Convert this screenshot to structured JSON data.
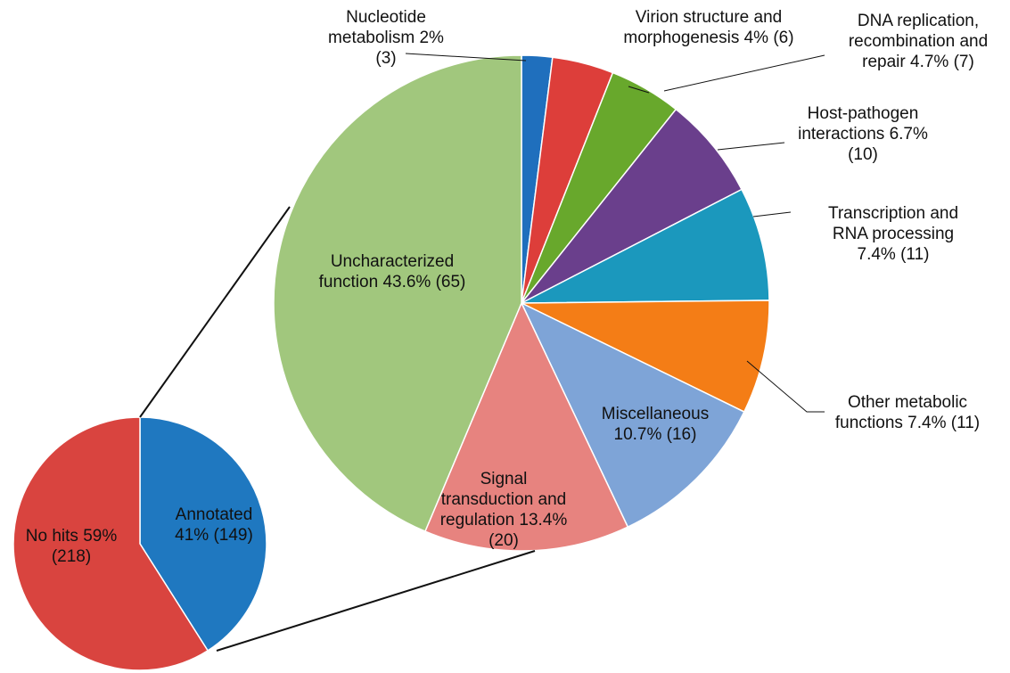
{
  "chart_data": [
    {
      "type": "pie",
      "categories": [
        "Nucleotide metabolism",
        "Virion structure and morphogenesis",
        "DNA replication, recombination and repair",
        "Host-pathogen interactions",
        "Transcription and RNA processing",
        "Other metabolic functions",
        "Miscellaneous",
        "Signal transduction and regulation",
        "Uncharacterized function"
      ],
      "values": [
        2,
        4,
        4.7,
        6.7,
        7.4,
        7.4,
        10.7,
        13.4,
        43.6
      ],
      "value_labels": [
        "2% (3)",
        "4% (6)",
        "4.7% (7)",
        "6.7% (10)",
        "7.4% (11)",
        "7.4% (11)",
        "10.7% (16)",
        "13.4% (20)",
        "43.6% (65)"
      ],
      "colors": [
        "#1f6fbd",
        "#dd3e3a",
        "#68a82c",
        "#6a3f8c",
        "#1b98bd",
        "#f47d16",
        "#7ea4d7",
        "#e7837f",
        "#a1c77d"
      ]
    },
    {
      "type": "pie",
      "categories": [
        "Annotated",
        "No hits"
      ],
      "values": [
        41,
        59
      ],
      "value_labels": [
        "41% (149)",
        "59% (218)"
      ],
      "colors": [
        "#1f78c0",
        "#d9443f"
      ]
    }
  ]
}
